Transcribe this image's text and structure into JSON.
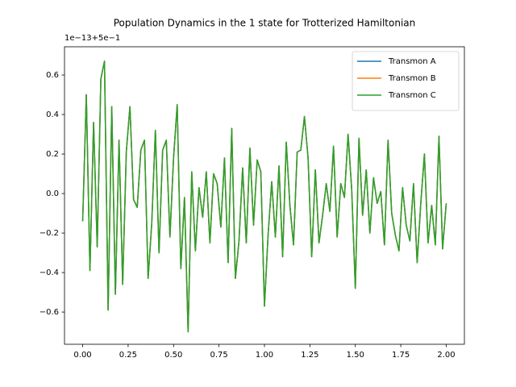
{
  "chart_data": {
    "type": "line",
    "title": "Population Dynamics in the 1 state for Trotterized Hamiltonian",
    "y_offset_label": "1e−13+5e−1",
    "x": [
      0.0,
      0.02,
      0.04,
      0.06,
      0.08,
      0.1,
      0.12,
      0.14,
      0.16,
      0.18,
      0.2,
      0.22,
      0.24,
      0.26,
      0.28,
      0.3,
      0.32,
      0.34,
      0.36,
      0.38,
      0.4,
      0.42,
      0.44,
      0.46,
      0.48,
      0.5,
      0.52,
      0.54,
      0.56,
      0.58,
      0.6,
      0.62,
      0.64,
      0.66,
      0.68,
      0.7,
      0.72,
      0.74,
      0.76,
      0.78,
      0.8,
      0.82,
      0.84,
      0.86,
      0.88,
      0.9,
      0.92,
      0.94,
      0.96,
      0.98,
      1.0,
      1.02,
      1.04,
      1.06,
      1.08,
      1.1,
      1.12,
      1.14,
      1.16,
      1.18,
      1.2,
      1.22,
      1.24,
      1.26,
      1.28,
      1.3,
      1.32,
      1.34,
      1.36,
      1.38,
      1.4,
      1.42,
      1.44,
      1.46,
      1.48,
      1.5,
      1.52,
      1.54,
      1.56,
      1.58,
      1.6,
      1.62,
      1.64,
      1.66,
      1.68,
      1.7,
      1.72,
      1.74,
      1.76,
      1.78,
      1.8,
      1.82,
      1.84,
      1.86,
      1.88,
      1.9,
      1.92,
      1.94,
      1.96,
      1.98,
      2.0
    ],
    "series": [
      {
        "name": "Transmon A",
        "color": "#1f77b4",
        "values": [
          -0.14,
          0.5,
          -0.39,
          0.36,
          -0.27,
          0.58,
          0.67,
          -0.59,
          0.44,
          -0.51,
          0.27,
          -0.46,
          0.21,
          0.44,
          -0.03,
          -0.07,
          0.22,
          0.27,
          -0.43,
          -0.15,
          0.32,
          -0.3,
          0.22,
          0.27,
          -0.22,
          0.18,
          0.45,
          -0.38,
          -0.02,
          -0.7,
          0.11,
          -0.29,
          0.03,
          -0.12,
          0.11,
          -0.25,
          0.1,
          0.05,
          -0.17,
          0.18,
          -0.35,
          0.33,
          -0.43,
          -0.24,
          0.13,
          -0.25,
          0.23,
          -0.16,
          0.17,
          0.11,
          -0.57,
          -0.21,
          0.06,
          -0.22,
          0.14,
          -0.32,
          0.26,
          -0.06,
          -0.26,
          0.21,
          0.22,
          0.39,
          0.18,
          -0.32,
          0.12,
          -0.25,
          -0.11,
          0.05,
          -0.09,
          0.24,
          -0.22,
          0.05,
          -0.02,
          0.3,
          0.02,
          -0.48,
          0.28,
          -0.11,
          0.12,
          -0.2,
          0.08,
          -0.05,
          0.01,
          -0.26,
          0.27,
          -0.1,
          -0.21,
          -0.29,
          0.03,
          -0.16,
          -0.24,
          0.05,
          -0.35,
          -0.05,
          0.2,
          -0.25,
          -0.06,
          -0.26,
          0.29,
          -0.28,
          -0.05
        ]
      },
      {
        "name": "Transmon B",
        "color": "#ff7f0e",
        "values": [
          -0.14,
          0.5,
          -0.39,
          0.36,
          -0.27,
          0.58,
          0.67,
          -0.59,
          0.44,
          -0.51,
          0.27,
          -0.46,
          0.21,
          0.44,
          -0.03,
          -0.07,
          0.22,
          0.27,
          -0.43,
          -0.15,
          0.32,
          -0.3,
          0.22,
          0.27,
          -0.22,
          0.18,
          0.45,
          -0.38,
          -0.02,
          -0.7,
          0.11,
          -0.29,
          0.03,
          -0.12,
          0.11,
          -0.25,
          0.1,
          0.05,
          -0.17,
          0.18,
          -0.35,
          0.33,
          -0.43,
          -0.24,
          0.13,
          -0.25,
          0.23,
          -0.16,
          0.17,
          0.11,
          -0.57,
          -0.21,
          0.06,
          -0.22,
          0.14,
          -0.32,
          0.26,
          -0.06,
          -0.26,
          0.21,
          0.22,
          0.39,
          0.18,
          -0.32,
          0.12,
          -0.25,
          -0.11,
          0.05,
          -0.09,
          0.24,
          -0.22,
          0.05,
          -0.02,
          0.3,
          0.02,
          -0.48,
          0.28,
          -0.11,
          0.12,
          -0.2,
          0.08,
          -0.05,
          0.01,
          -0.26,
          0.27,
          -0.1,
          -0.21,
          -0.29,
          0.03,
          -0.16,
          -0.24,
          0.05,
          -0.35,
          -0.05,
          0.2,
          -0.25,
          -0.06,
          -0.26,
          0.29,
          -0.28,
          -0.05
        ]
      },
      {
        "name": "Transmon C",
        "color": "#2ca02c",
        "values": [
          -0.14,
          0.5,
          -0.39,
          0.36,
          -0.27,
          0.58,
          0.67,
          -0.59,
          0.44,
          -0.51,
          0.27,
          -0.46,
          0.21,
          0.44,
          -0.03,
          -0.07,
          0.22,
          0.27,
          -0.43,
          -0.15,
          0.32,
          -0.3,
          0.22,
          0.27,
          -0.22,
          0.18,
          0.45,
          -0.38,
          -0.02,
          -0.7,
          0.11,
          -0.29,
          0.03,
          -0.12,
          0.11,
          -0.25,
          0.1,
          0.05,
          -0.17,
          0.18,
          -0.35,
          0.33,
          -0.43,
          -0.24,
          0.13,
          -0.25,
          0.23,
          -0.16,
          0.17,
          0.11,
          -0.57,
          -0.21,
          0.06,
          -0.22,
          0.14,
          -0.32,
          0.26,
          -0.06,
          -0.26,
          0.21,
          0.22,
          0.39,
          0.18,
          -0.32,
          0.12,
          -0.25,
          -0.11,
          0.05,
          -0.09,
          0.24,
          -0.22,
          0.05,
          -0.02,
          0.3,
          0.02,
          -0.48,
          0.28,
          -0.11,
          0.12,
          -0.2,
          0.08,
          -0.05,
          0.01,
          -0.26,
          0.27,
          -0.1,
          -0.21,
          -0.29,
          0.03,
          -0.16,
          -0.24,
          0.05,
          -0.35,
          -0.05,
          0.2,
          -0.25,
          -0.06,
          -0.26,
          0.29,
          -0.28,
          -0.05
        ]
      }
    ],
    "xlim": [
      -0.1,
      2.1
    ],
    "ylim": [
      -0.763,
      0.743
    ],
    "xticks": [
      {
        "value": 0,
        "label": "0.00"
      },
      {
        "value": 0.25,
        "label": "0.25"
      },
      {
        "value": 0.5,
        "label": "0.50"
      },
      {
        "value": 0.75,
        "label": "0.75"
      },
      {
        "value": 1,
        "label": "1.00"
      },
      {
        "value": 1.25,
        "label": "1.25"
      },
      {
        "value": 1.5,
        "label": "1.50"
      },
      {
        "value": 1.75,
        "label": "1.75"
      },
      {
        "value": 2,
        "label": "2.00"
      }
    ],
    "yticks": [
      {
        "value": -0.6,
        "label": "−0.6"
      },
      {
        "value": -0.4,
        "label": "−0.4"
      },
      {
        "value": -0.2,
        "label": "−0.2"
      },
      {
        "value": 0,
        "label": "0.0"
      },
      0.2,
      0.4,
      0.6
    ],
    "grid": false,
    "legend": "upper-right"
  }
}
